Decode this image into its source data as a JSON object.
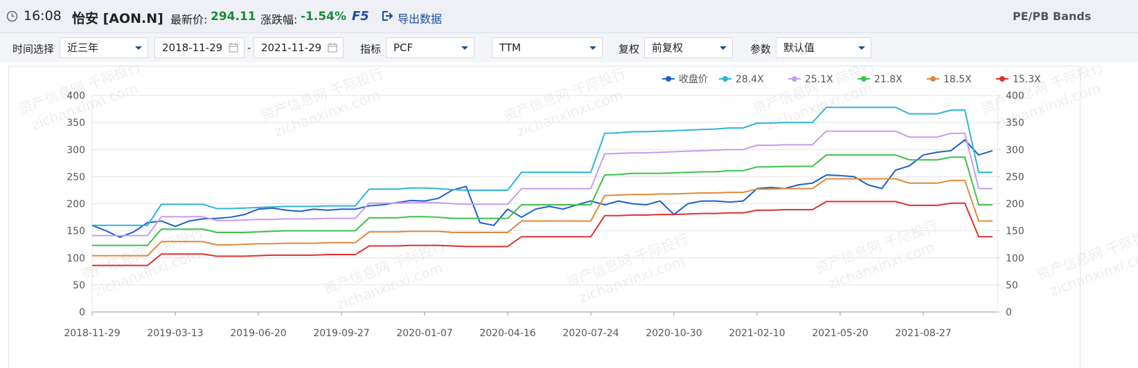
{
  "header": {
    "time": "16:08",
    "name": "怡安 [AON.N]",
    "price_label": "最新价:",
    "price": "294.11",
    "change_label": "涨跌幅:",
    "change": "-1.54%",
    "refresh": "F5",
    "export": "导出数据",
    "right_title": "PE/PB Bands"
  },
  "toolbar": {
    "time_label": "时间选择",
    "time_value": "近三年",
    "start_date": "2018-11-29",
    "date_sep": "-",
    "end_date": "2021-11-29",
    "indicator_label": "指标",
    "indicator_value": "PCF",
    "period_value": "TTM",
    "adjust_label": "复权",
    "adjust_value": "前复权",
    "param_label": "参数",
    "param_value": "默认值"
  },
  "watermark": {
    "line1": "资产信息网 千际投行",
    "line2": "zichanxinxi.com"
  },
  "chart_data": {
    "type": "line",
    "categories": [
      "2018-11-29",
      null,
      null,
      null,
      null,
      null,
      "2019-03-13",
      null,
      null,
      null,
      null,
      null,
      "2019-06-20",
      null,
      null,
      null,
      null,
      null,
      "2019-09-27",
      null,
      null,
      null,
      null,
      null,
      "2020-01-07",
      null,
      null,
      null,
      null,
      null,
      "2020-04-16",
      null,
      null,
      null,
      null,
      null,
      "2020-07-24",
      null,
      null,
      null,
      null,
      null,
      "2020-10-30",
      null,
      null,
      null,
      null,
      null,
      "2021-02-10",
      null,
      null,
      null,
      null,
      null,
      "2021-05-20",
      null,
      null,
      null,
      null,
      null,
      "2021-08-27",
      null,
      null,
      null,
      null,
      null
    ],
    "ylim": [
      0,
      400
    ],
    "yticks": [
      0,
      50,
      100,
      150,
      200,
      250,
      300,
      350,
      400
    ],
    "y2lim": [
      0,
      400
    ],
    "y2ticks": [
      0,
      50,
      100,
      150,
      200,
      250,
      300,
      350,
      400
    ],
    "grid": true,
    "legend": "top-right",
    "series": [
      {
        "name": "收盘价",
        "color": "#1a5fd0",
        "values": [
          160,
          150,
          138,
          148,
          165,
          168,
          158,
          168,
          172,
          173,
          175,
          180,
          190,
          192,
          188,
          186,
          190,
          188,
          190,
          190,
          196,
          198,
          202,
          206,
          205,
          210,
          225,
          232,
          165,
          160,
          190,
          175,
          190,
          195,
          190,
          198,
          205,
          198,
          205,
          200,
          198,
          205,
          180,
          200,
          205,
          205,
          203,
          205,
          228,
          230,
          228,
          235,
          238,
          253,
          252,
          250,
          235,
          228,
          262,
          270,
          290,
          295,
          298,
          318,
          290,
          298
        ]
      },
      {
        "name": "28.4X",
        "color": "#2cb5d8",
        "values": [
          160,
          160,
          160,
          160,
          160,
          199,
          199,
          199,
          199,
          191,
          191,
          192,
          193,
          194,
          195,
          195,
          195,
          196,
          196,
          196,
          227,
          227,
          227,
          229,
          229,
          228,
          226,
          225,
          225,
          225,
          225,
          258,
          258,
          258,
          258,
          258,
          258,
          330,
          331,
          333,
          333,
          334,
          335,
          336,
          337,
          338,
          340,
          340,
          349,
          349,
          350,
          350,
          350,
          378,
          378,
          378,
          378,
          378,
          378,
          366,
          366,
          366,
          373,
          373,
          258,
          258
        ]
      },
      {
        "name": "25.1X",
        "color": "#c79cf0",
        "values": [
          141,
          141,
          141,
          141,
          141,
          176,
          176,
          176,
          176,
          169,
          169,
          170,
          171,
          171,
          172,
          172,
          172,
          173,
          173,
          173,
          201,
          201,
          201,
          202,
          202,
          202,
          200,
          199,
          199,
          199,
          199,
          228,
          228,
          228,
          228,
          228,
          228,
          292,
          293,
          294,
          294,
          295,
          296,
          297,
          298,
          299,
          300,
          300,
          308,
          308,
          309,
          309,
          309,
          334,
          334,
          334,
          334,
          334,
          334,
          323,
          323,
          323,
          330,
          330,
          228,
          228
        ]
      },
      {
        "name": "21.8X",
        "color": "#3cc24a",
        "values": [
          123,
          123,
          123,
          123,
          123,
          153,
          153,
          153,
          153,
          147,
          147,
          147,
          148,
          149,
          150,
          150,
          150,
          150,
          150,
          150,
          174,
          174,
          174,
          176,
          176,
          175,
          173,
          173,
          173,
          173,
          173,
          198,
          198,
          198,
          198,
          198,
          198,
          253,
          254,
          256,
          256,
          256,
          257,
          258,
          259,
          259,
          261,
          261,
          268,
          268,
          269,
          269,
          269,
          290,
          290,
          290,
          290,
          290,
          290,
          281,
          281,
          281,
          286,
          286,
          198,
          198
        ]
      },
      {
        "name": "18.5X",
        "color": "#e0893a",
        "values": [
          104,
          104,
          104,
          104,
          104,
          130,
          130,
          130,
          130,
          124,
          124,
          125,
          126,
          126,
          127,
          127,
          127,
          128,
          128,
          128,
          148,
          148,
          148,
          149,
          149,
          149,
          147,
          147,
          147,
          147,
          147,
          168,
          168,
          168,
          168,
          168,
          168,
          215,
          216,
          217,
          217,
          218,
          218,
          219,
          220,
          220,
          221,
          221,
          227,
          227,
          228,
          228,
          228,
          246,
          246,
          246,
          246,
          246,
          246,
          238,
          238,
          238,
          243,
          243,
          168,
          168
        ]
      },
      {
        "name": "15.3X",
        "color": "#e03030",
        "values": [
          86,
          86,
          86,
          86,
          86,
          107,
          107,
          107,
          107,
          103,
          103,
          103,
          104,
          105,
          105,
          105,
          105,
          106,
          106,
          106,
          122,
          122,
          122,
          123,
          123,
          123,
          122,
          121,
          121,
          121,
          121,
          139,
          139,
          139,
          139,
          139,
          139,
          178,
          178,
          179,
          179,
          180,
          180,
          181,
          182,
          182,
          183,
          183,
          188,
          188,
          189,
          189,
          189,
          204,
          204,
          204,
          204,
          204,
          204,
          197,
          197,
          197,
          201,
          201,
          139,
          139
        ]
      }
    ]
  }
}
